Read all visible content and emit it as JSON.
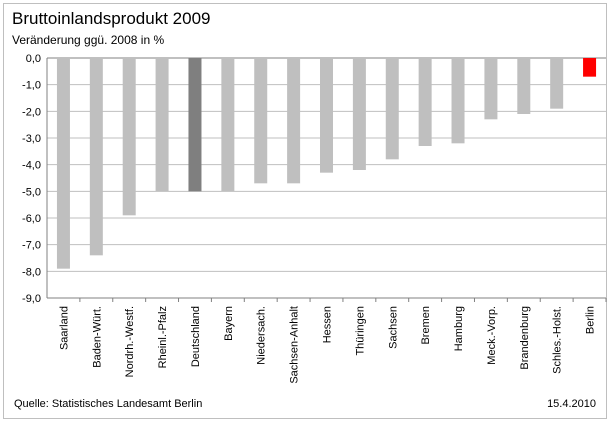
{
  "header": {
    "title": "Bruttoinlandsprodukt 2009",
    "subtitle": "Veränderung ggü. 2008 in %"
  },
  "footer": {
    "source": "Quelle: Statistisches Landesamt Berlin",
    "date": "15.4.2010"
  },
  "colors": {
    "default_bar": "#bfbfbf",
    "highlight_bar": "#7f7f7f",
    "berlin_bar": "#ff0000"
  },
  "chart_data": {
    "type": "bar",
    "title": "Bruttoinlandsprodukt 2009",
    "subtitle": "Veränderung ggü. 2008 in %",
    "categories": [
      "Saarland",
      "Baden-Würt.",
      "Nordrh.-Westf.",
      "Rheinl.-Pfalz",
      "Deutschland",
      "Bayern",
      "Niedersach.",
      "Sachsen-Anhalt",
      "Hessen",
      "Thüringen",
      "Sachsen",
      "Bremen",
      "Hamburg",
      "Meck.-Vorp.",
      "Brandenburg",
      "Schles.-Holst.",
      "Berlin"
    ],
    "values": [
      -7.9,
      -7.4,
      -5.9,
      -5.0,
      -5.0,
      -5.0,
      -4.7,
      -4.7,
      -4.3,
      -4.2,
      -3.8,
      -3.3,
      -3.2,
      -2.3,
      -2.1,
      -1.9,
      -0.7
    ],
    "highlight": {
      "Deutschland": "dark",
      "Berlin": "red"
    },
    "ylim": [
      -9.0,
      0.0
    ],
    "yticks": [
      "0,0",
      "-1,0",
      "-2,0",
      "-3,0",
      "-4,0",
      "-5,0",
      "-6,0",
      "-7,0",
      "-8,0",
      "-9,0"
    ],
    "grid": true,
    "legend": "none"
  }
}
